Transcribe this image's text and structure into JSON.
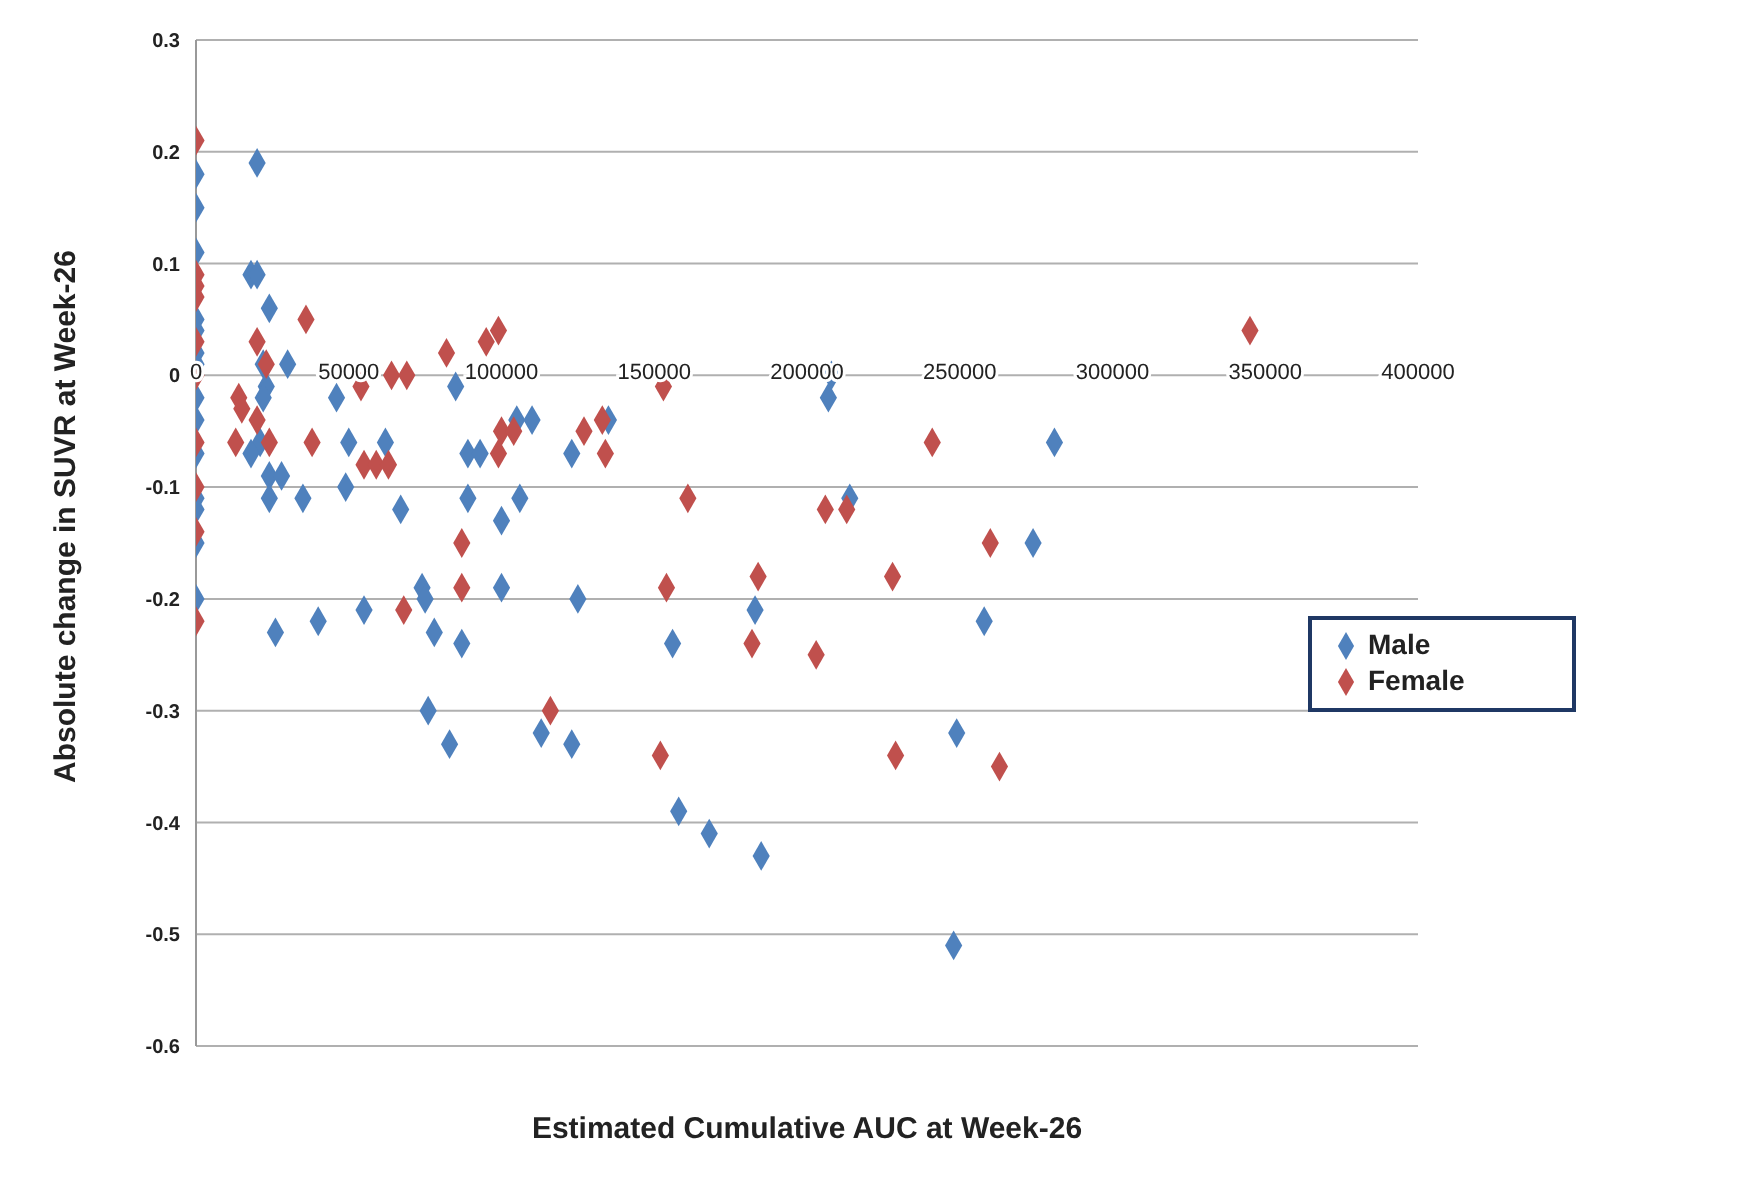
{
  "chart_data": {
    "type": "scatter",
    "xlabel": "Estimated Cumulative AUC at Week-26",
    "ylabel": "Absolute change in SUVR at Week-26",
    "xlim": [
      0,
      400000
    ],
    "xticks": [
      0,
      50000,
      100000,
      150000,
      200000,
      250000,
      300000,
      350000,
      400000
    ],
    "ylim": [
      -0.6,
      0.3
    ],
    "yticks": [
      -0.6,
      -0.5,
      -0.4,
      -0.3,
      -0.2,
      -0.1,
      0,
      0.1,
      0.2,
      0.3
    ],
    "grid": "y",
    "legend": "right",
    "marker": "diamond",
    "series": [
      {
        "name": "Male",
        "color": "#4f81bd",
        "x": [
          0,
          0,
          0,
          0,
          0,
          0,
          0,
          0,
          0,
          0,
          0,
          0,
          0,
          0,
          20000,
          18000,
          20000,
          24000,
          22000,
          23000,
          30000,
          22000,
          21000,
          18000,
          24000,
          28000,
          24000,
          35000,
          26000,
          40000,
          46000,
          50000,
          49000,
          55000,
          62000,
          67000,
          74000,
          75000,
          78000,
          76000,
          83000,
          85000,
          89000,
          93000,
          89000,
          87000,
          100000,
          100000,
          106000,
          105000,
          110000,
          113000,
          123000,
          125000,
          123000,
          135000,
          156000,
          158000,
          168000,
          185000,
          183000,
          208000,
          207000,
          214000,
          249000,
          248000,
          258000,
          274000,
          281000
        ],
        "values": [
          0.18,
          0.15,
          0.11,
          0.05,
          0.04,
          0.02,
          0.01,
          -0.02,
          -0.04,
          -0.07,
          -0.11,
          -0.12,
          -0.15,
          -0.2,
          0.19,
          0.09,
          0.09,
          0.06,
          0.01,
          -0.01,
          0.01,
          -0.02,
          -0.06,
          -0.07,
          -0.09,
          -0.09,
          -0.11,
          -0.11,
          -0.23,
          -0.22,
          -0.02,
          -0.06,
          -0.1,
          -0.21,
          -0.06,
          -0.12,
          -0.19,
          -0.2,
          -0.23,
          -0.3,
          -0.33,
          -0.01,
          -0.07,
          -0.07,
          -0.11,
          -0.24,
          -0.19,
          -0.13,
          -0.11,
          -0.04,
          -0.04,
          -0.32,
          -0.33,
          -0.2,
          -0.07,
          -0.04,
          -0.24,
          -0.39,
          -0.41,
          -0.43,
          -0.21,
          0,
          -0.02,
          -0.11,
          -0.32,
          -0.51,
          -0.22,
          -0.15,
          -0.06
        ]
      },
      {
        "name": "Female",
        "color": "#c0504d",
        "x": [
          0,
          0,
          0,
          0,
          0,
          0,
          0,
          0,
          0,
          0,
          14000,
          15000,
          13000,
          20000,
          20000,
          23000,
          24000,
          36000,
          38000,
          54000,
          55000,
          59000,
          63000,
          64000,
          69000,
          68000,
          82000,
          87000,
          87000,
          95000,
          99000,
          99000,
          100000,
          104000,
          116000,
          127000,
          133000,
          134000,
          153000,
          154000,
          161000,
          182000,
          184000,
          203000,
          206000,
          213000,
          228000,
          229000,
          241000,
          260000,
          263000,
          345000,
          152000
        ],
        "values": [
          0.21,
          0.09,
          0.08,
          0.07,
          0.03,
          0,
          -0.06,
          -0.1,
          -0.14,
          -0.22,
          -0.02,
          -0.03,
          -0.06,
          -0.04,
          0.03,
          0.01,
          -0.06,
          0.05,
          -0.06,
          -0.01,
          -0.08,
          -0.08,
          -0.08,
          0,
          0,
          -0.21,
          0.02,
          -0.15,
          -0.19,
          0.03,
          0.04,
          -0.07,
          -0.05,
          -0.05,
          -0.3,
          -0.05,
          -0.04,
          -0.07,
          -0.01,
          -0.19,
          -0.11,
          -0.24,
          -0.18,
          -0.25,
          -0.12,
          -0.12,
          -0.18,
          -0.34,
          -0.06,
          -0.15,
          -0.35,
          0.04,
          -0.34
        ]
      }
    ]
  }
}
